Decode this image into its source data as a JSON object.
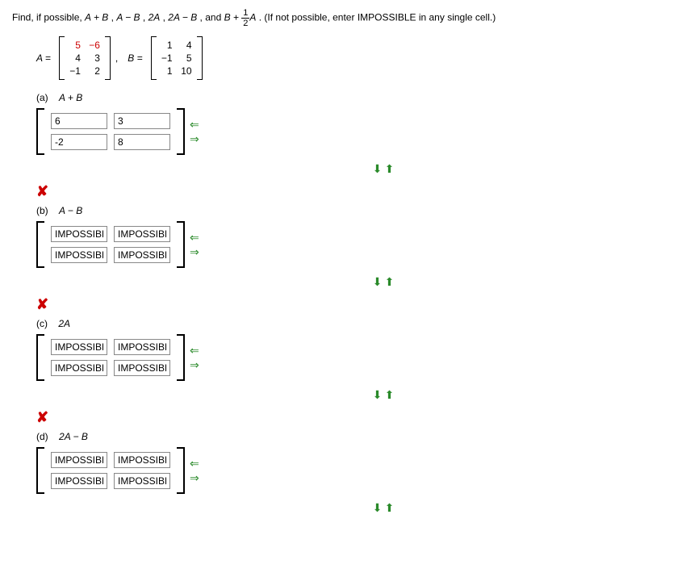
{
  "prompt": {
    "pre": "Find, if possible,  ",
    "expr1": "A + B",
    "sep1": ",   ",
    "expr2": "A − B",
    "sep2": ",   ",
    "expr3": "2A",
    "sep3": ",   ",
    "expr4": "2A − B",
    "sep4": ",   and   ",
    "expr5_left": "B + ",
    "frac_num": "1",
    "frac_den": "2",
    "expr5_right": "A",
    "post": ".   (If not possible, enter IMPOSSIBLE in any single cell.)"
  },
  "matA": {
    "label": "A = ",
    "rows": [
      [
        "5",
        "−6"
      ],
      [
        "4",
        "3"
      ],
      [
        "−1",
        "2"
      ]
    ],
    "red_rows": [
      true,
      false,
      false
    ]
  },
  "comma": ",",
  "matB": {
    "label": "B = ",
    "rows": [
      [
        "1",
        "4"
      ],
      [
        "−1",
        "5"
      ],
      [
        "1",
        "10"
      ]
    ]
  },
  "parts": {
    "a": {
      "label": "(a)",
      "expr": "A + B",
      "cells": [
        [
          "6",
          "3"
        ],
        [
          "-2",
          "8"
        ]
      ]
    },
    "b": {
      "label": "(b)",
      "expr": "A − B",
      "cells": [
        [
          "IMPOSSIBLE",
          "IMPOSSIBLE"
        ],
        [
          "IMPOSSIBLE",
          "IMPOSSIBLE"
        ]
      ]
    },
    "c": {
      "label": "(c)",
      "expr": "2A",
      "cells": [
        [
          "IMPOSSIBLE",
          "IMPOSSIBLE"
        ],
        [
          "IMPOSSIBLE",
          "IMPOSSIBLE"
        ]
      ]
    },
    "d": {
      "label": "(d)",
      "expr": "2A − B",
      "cells": [
        [
          "IMPOSSIBLE",
          "IMPOSSIBLE"
        ],
        [
          "IMPOSSIBLE",
          "IMPOSSIBLE"
        ]
      ]
    }
  },
  "icons": {
    "wrong": "✘",
    "arrow_left": "⇐",
    "arrow_right": "⇒",
    "arrow_down": "⬇",
    "arrow_up": "⬆"
  }
}
